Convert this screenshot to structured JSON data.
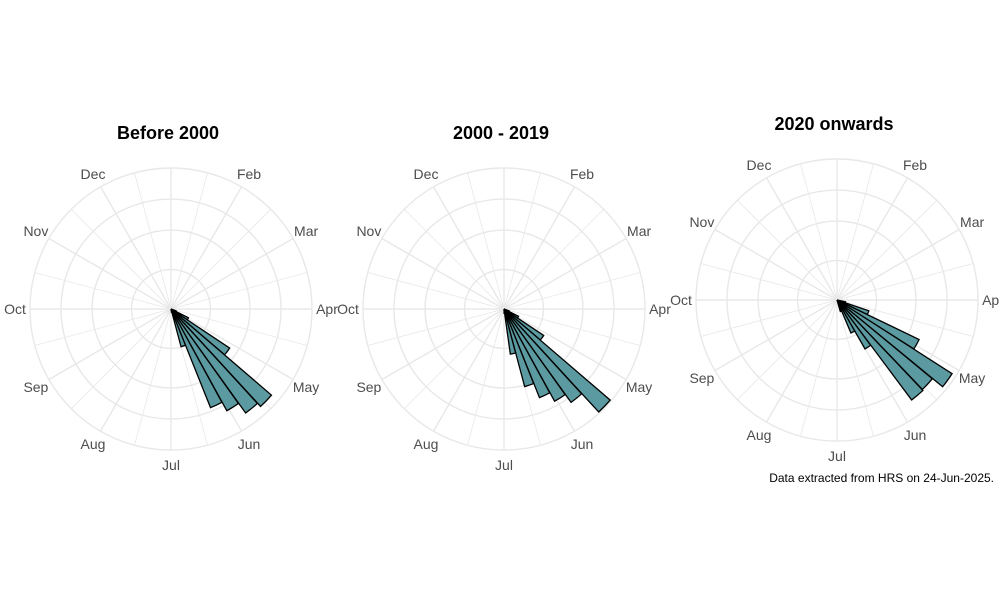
{
  "colors": {
    "bar_fill": "#5b9aa0",
    "bar_stroke": "#000000",
    "grid": "#e8e8e8",
    "label": "#4d4d4d",
    "background": "#ffffff"
  },
  "caption": "Data extracted from HRS on 24-Jun-2025.",
  "chart_data": [
    {
      "type": "polar-histogram",
      "title": "Before 2000",
      "month_labels": [
        "Feb",
        "Mar",
        "Apr",
        "May",
        "Jun",
        "Jul",
        "Aug",
        "Sep",
        "Oct",
        "Nov",
        "Dec"
      ],
      "grid": true,
      "values": [
        0,
        0,
        0.5,
        1.8,
        6.5,
        12.2,
        11.8,
        10.7,
        9.8,
        3.6,
        0.3,
        0,
        0,
        0,
        0,
        0,
        0,
        0,
        0,
        0,
        0,
        0,
        0,
        0,
        0,
        0,
        0,
        0,
        0,
        0,
        0,
        0,
        0,
        0,
        0,
        0,
        0,
        0,
        0,
        0,
        0,
        0,
        0,
        0,
        0,
        0,
        0,
        0,
        0,
        0,
        0,
        0
      ]
    },
    {
      "type": "polar-histogram",
      "title": "2000 - 2019",
      "month_labels": [
        "Feb",
        "Mar",
        "Apr",
        "May",
        "Jun",
        "Jul",
        "Aug",
        "Sep",
        "Oct",
        "Nov",
        "Dec"
      ],
      "grid": true,
      "values": [
        0,
        0,
        0.5,
        1.5,
        4.4,
        12.9,
        10.6,
        9.7,
        8.8,
        7.4,
        4.2,
        0.4,
        0,
        0,
        0,
        0,
        0,
        0,
        0,
        0,
        0,
        0,
        0,
        0,
        0,
        0,
        0,
        0,
        0,
        0,
        0,
        0,
        0,
        0,
        0,
        0,
        0,
        0,
        0,
        0,
        0,
        0,
        0,
        0,
        0,
        0,
        0,
        0,
        0,
        0,
        0,
        0
      ]
    },
    {
      "type": "polar-histogram",
      "title": "2020 onwards",
      "month_labels": [
        "Dec",
        "Feb",
        "Mar",
        "Apr",
        "May",
        "Jun",
        "Jul",
        "Aug",
        "Sep",
        "Oct",
        "Nov"
      ],
      "grid": true,
      "values": [
        0,
        0,
        0.8,
        3.1,
        8.4,
        12.6,
        11.4,
        11.5,
        5.2,
        3.3,
        1.1,
        0,
        0,
        0,
        0,
        0,
        0,
        0,
        0,
        0,
        0,
        0,
        0,
        0,
        0,
        0,
        0,
        0,
        0,
        0,
        0,
        0,
        0,
        0,
        0,
        0,
        0,
        0,
        0,
        0,
        0,
        0,
        0,
        0,
        0,
        0,
        0,
        0,
        0,
        0,
        0,
        0
      ]
    }
  ]
}
